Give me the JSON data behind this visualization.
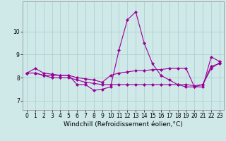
{
  "xlabel": "Windchill (Refroidissement éolien,°C)",
  "background_color": "#cfe8e8",
  "grid_color": "#aacccc",
  "line_color": "#990099",
  "x_hours": [
    0,
    1,
    2,
    3,
    4,
    5,
    6,
    7,
    8,
    9,
    10,
    11,
    12,
    13,
    14,
    15,
    16,
    17,
    18,
    19,
    20,
    21,
    22,
    23
  ],
  "series1": [
    8.2,
    8.4,
    8.2,
    8.15,
    8.1,
    8.1,
    7.7,
    7.7,
    7.45,
    7.5,
    7.6,
    9.2,
    10.5,
    10.85,
    9.5,
    8.6,
    8.1,
    7.9,
    7.7,
    7.6,
    7.6,
    7.6,
    8.9,
    8.7
  ],
  "series2": [
    8.2,
    8.2,
    8.1,
    8.1,
    8.1,
    8.1,
    8.0,
    7.95,
    7.9,
    7.8,
    8.1,
    8.2,
    8.25,
    8.3,
    8.3,
    8.35,
    8.35,
    8.4,
    8.4,
    8.4,
    7.6,
    7.7,
    8.4,
    8.65
  ],
  "series3": [
    8.2,
    8.2,
    8.1,
    8.0,
    8.0,
    8.0,
    7.9,
    7.8,
    7.75,
    7.7,
    7.7,
    7.7,
    7.7,
    7.7,
    7.7,
    7.7,
    7.7,
    7.7,
    7.7,
    7.7,
    7.65,
    7.7,
    8.5,
    8.6
  ],
  "ylim": [
    6.6,
    11.3
  ],
  "yticks": [
    7,
    8,
    9,
    10
  ],
  "xticks": [
    0,
    1,
    2,
    3,
    4,
    5,
    6,
    7,
    8,
    9,
    10,
    11,
    12,
    13,
    14,
    15,
    16,
    17,
    18,
    19,
    20,
    21,
    22,
    23
  ],
  "marker": "D",
  "markersize": 2.0,
  "linewidth": 0.8,
  "tick_fontsize": 5.5,
  "xlabel_fontsize": 6.5
}
